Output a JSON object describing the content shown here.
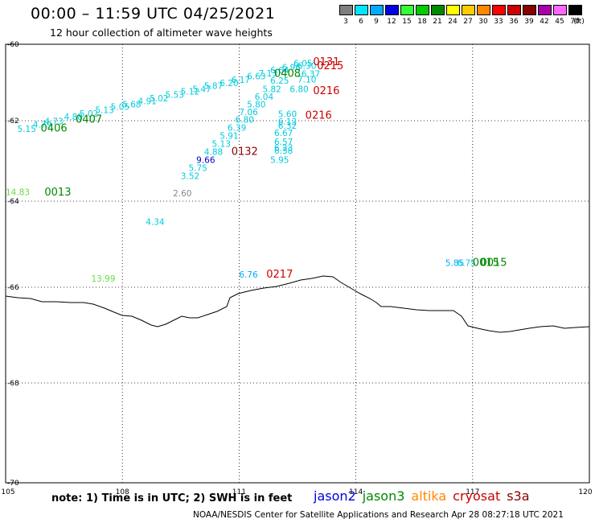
{
  "title": "00:00 – 11:59 UTC 04/25/2021",
  "subtitle": "12 hour collection of altimeter wave heights",
  "colorbar": {
    "cells": [
      {
        "label": "3",
        "color": "#7f7f7f"
      },
      {
        "label": "6",
        "color": "#00e5ff"
      },
      {
        "label": "9",
        "color": "#00aaff"
      },
      {
        "label": "12",
        "color": "#0000e0"
      },
      {
        "label": "15",
        "color": "#33ff33"
      },
      {
        "label": "18",
        "color": "#00cc00"
      },
      {
        "label": "21",
        "color": "#008800"
      },
      {
        "label": "24",
        "color": "#ffff00"
      },
      {
        "label": "27",
        "color": "#ffcc00"
      },
      {
        "label": "30",
        "color": "#ff8800"
      },
      {
        "label": "33",
        "color": "#ff0000"
      },
      {
        "label": "36",
        "color": "#cc0000"
      },
      {
        "label": "39",
        "color": "#880000"
      },
      {
        "label": "42",
        "color": "#aa00aa"
      },
      {
        "label": "45",
        "color": "#ff66ff"
      },
      {
        "label": "70",
        "color": "#000000"
      }
    ],
    "unit": "(ft)"
  },
  "axes": {
    "lon_labels": [
      "105",
      "108",
      "111",
      "114",
      "117",
      "120"
    ],
    "lat_labels": [
      "-60",
      "-62",
      "-64",
      "-66",
      "-68",
      "-70"
    ]
  },
  "wave_heights": [
    {
      "v": "5.15",
      "c": "#00ccdd",
      "lon": 105.3,
      "lat": -62.28
    },
    {
      "v": "4.79",
      "c": "#00ccdd",
      "lon": 105.7,
      "lat": -62.17
    },
    {
      "v": "4.73",
      "c": "#00ccdd",
      "lon": 106.0,
      "lat": -62.09
    },
    {
      "v": "4.88",
      "c": "#00ccdd",
      "lon": 106.5,
      "lat": -61.98
    },
    {
      "v": "5.02",
      "c": "#00ccdd",
      "lon": 106.9,
      "lat": -61.89
    },
    {
      "v": "5.13",
      "c": "#00ccdd",
      "lon": 107.3,
      "lat": -61.8
    },
    {
      "v": "5.05",
      "c": "#00ccdd",
      "lon": 107.7,
      "lat": -61.72
    },
    {
      "v": "5.68",
      "c": "#00ccdd",
      "lon": 108.0,
      "lat": -61.65
    },
    {
      "v": "4.91",
      "c": "#00ccdd",
      "lon": 108.4,
      "lat": -61.57
    },
    {
      "v": "5.02",
      "c": "#00ccdd",
      "lon": 108.7,
      "lat": -61.49
    },
    {
      "v": "5.53",
      "c": "#00ccdd",
      "lon": 109.1,
      "lat": -61.4
    },
    {
      "v": "5.12",
      "c": "#00ccdd",
      "lon": 109.5,
      "lat": -61.32
    },
    {
      "v": "5.47",
      "c": "#00ccdd",
      "lon": 109.8,
      "lat": -61.25
    },
    {
      "v": "5.87",
      "c": "#00ccdd",
      "lon": 110.1,
      "lat": -61.17
    },
    {
      "v": "6.20",
      "c": "#00ccdd",
      "lon": 110.5,
      "lat": -61.09
    },
    {
      "v": "6.17",
      "c": "#00ccdd",
      "lon": 110.8,
      "lat": -61.01
    },
    {
      "v": "6.63",
      "c": "#00ccdd",
      "lon": 111.2,
      "lat": -60.92
    },
    {
      "v": "7.13",
      "c": "#00ccdd",
      "lon": 111.5,
      "lat": -60.84
    },
    {
      "v": "6.64",
      "c": "#00ccdd",
      "lon": 111.8,
      "lat": -60.76
    },
    {
      "v": "6.96",
      "c": "#00ccdd",
      "lon": 112.1,
      "lat": -60.68
    },
    {
      "v": "6.05",
      "c": "#00ccdd",
      "lon": 112.4,
      "lat": -60.58
    },
    {
      "v": "6.30",
      "c": "#00ccdd",
      "lon": 112.5,
      "lat": -60.64
    },
    {
      "v": "6.37",
      "c": "#00ccdd",
      "lon": 112.6,
      "lat": -60.85
    },
    {
      "v": "7.10",
      "c": "#00ccdd",
      "lon": 112.5,
      "lat": -61.0
    },
    {
      "v": "6.25",
      "c": "#00ccdd",
      "lon": 111.8,
      "lat": -61.03
    },
    {
      "v": "6.80",
      "c": "#00ccdd",
      "lon": 112.3,
      "lat": -61.25
    },
    {
      "v": "5.82",
      "c": "#00ccdd",
      "lon": 111.6,
      "lat": -61.25
    },
    {
      "v": "6.04",
      "c": "#00ccdd",
      "lon": 111.4,
      "lat": -61.45
    },
    {
      "v": "5.80",
      "c": "#00ccdd",
      "lon": 111.2,
      "lat": -61.65
    },
    {
      "v": "7.06",
      "c": "#00ccdd",
      "lon": 111.0,
      "lat": -61.85
    },
    {
      "v": "6.80",
      "c": "#00ccdd",
      "lon": 110.9,
      "lat": -62.05
    },
    {
      "v": "6.39",
      "c": "#00ccdd",
      "lon": 110.7,
      "lat": -62.25
    },
    {
      "v": "5.91",
      "c": "#00ccdd",
      "lon": 110.5,
      "lat": -62.45
    },
    {
      "v": "5.13",
      "c": "#00ccdd",
      "lon": 110.3,
      "lat": -62.65
    },
    {
      "v": "4.88",
      "c": "#00ccdd",
      "lon": 110.1,
      "lat": -62.85
    },
    {
      "v": "9.66",
      "c": "#0000cc",
      "lon": 109.9,
      "lat": -63.05
    },
    {
      "v": "5.75",
      "c": "#00ccdd",
      "lon": 109.7,
      "lat": -63.25
    },
    {
      "v": "3.52",
      "c": "#00ccdd",
      "lon": 109.5,
      "lat": -63.45
    },
    {
      "v": "5.60",
      "c": "#00ccdd",
      "lon": 112.0,
      "lat": -61.9
    },
    {
      "v": "6.13",
      "c": "#00ccdd",
      "lon": 112.0,
      "lat": -62.1
    },
    {
      "v": "6.32",
      "c": "#00ccdd",
      "lon": 112.0,
      "lat": -62.2
    },
    {
      "v": "6.67",
      "c": "#00ccdd",
      "lon": 111.9,
      "lat": -62.38
    },
    {
      "v": "6.57",
      "c": "#00ccdd",
      "lon": 111.9,
      "lat": -62.6
    },
    {
      "v": "6.23",
      "c": "#00ccdd",
      "lon": 111.9,
      "lat": -62.75
    },
    {
      "v": "6.38",
      "c": "#00ccdd",
      "lon": 111.9,
      "lat": -62.82
    },
    {
      "v": "5.95",
      "c": "#00ccdd",
      "lon": 111.8,
      "lat": -63.05
    },
    {
      "v": "14.83",
      "c": "#66dd44",
      "lon": 105.0,
      "lat": -63.85
    },
    {
      "v": "2.60",
      "c": "#888888",
      "lon": 109.3,
      "lat": -63.88
    },
    {
      "v": "4.34",
      "c": "#00ccdd",
      "lon": 108.6,
      "lat": -64.55
    },
    {
      "v": "13.99",
      "c": "#66dd44",
      "lon": 107.2,
      "lat": -65.87
    },
    {
      "v": "6.76",
      "c": "#00aaff",
      "lon": 111.0,
      "lat": -65.78
    },
    {
      "v": "5.85",
      "c": "#00aaff",
      "lon": 116.3,
      "lat": -65.5
    },
    {
      "v": "6.75",
      "c": "#00ccdd",
      "lon": 116.6,
      "lat": -65.5
    }
  ],
  "pass_times": [
    {
      "t": "0406",
      "c": "#008800",
      "lon": 105.9,
      "lat": -62.27
    },
    {
      "t": "0407",
      "c": "#008800",
      "lon": 106.8,
      "lat": -62.05
    },
    {
      "t": "0013",
      "c": "#008800",
      "lon": 106.0,
      "lat": -63.86
    },
    {
      "t": "0408",
      "c": "#008800",
      "lon": 111.9,
      "lat": -60.85
    },
    {
      "t": "0131",
      "c": "#cc0000",
      "lon": 112.9,
      "lat": -60.55
    },
    {
      "t": "0215",
      "c": "#cc0000",
      "lon": 113.0,
      "lat": -60.65
    },
    {
      "t": "0216",
      "c": "#cc0000",
      "lon": 112.9,
      "lat": -61.3
    },
    {
      "t": "0216",
      "c": "#cc0000",
      "lon": 112.7,
      "lat": -61.95
    },
    {
      "t": "0132",
      "c": "#880000",
      "lon": 110.8,
      "lat": -62.85
    },
    {
      "t": "0217",
      "c": "#cc0000",
      "lon": 111.7,
      "lat": -65.78
    },
    {
      "t": "0015",
      "c": "#008800",
      "lon": 117.0,
      "lat": -65.5
    },
    {
      "t": "0015",
      "c": "#008800",
      "lon": 117.2,
      "lat": -65.5
    }
  ],
  "note": "note:  1) Time is in UTC; 2) SWH is in feet",
  "satellites": [
    {
      "name": "jason2",
      "color": "#0000dd"
    },
    {
      "name": "jason3",
      "color": "#008800"
    },
    {
      "name": "altika",
      "color": "#ff8800"
    },
    {
      "name": "cryosat",
      "color": "#cc0000"
    },
    {
      "name": "s3a",
      "color": "#880000"
    }
  ],
  "credit": "NOAA/NESDIS Center for Satellite Applications and Research    Apr 28 08:27:18 UTC 2021"
}
